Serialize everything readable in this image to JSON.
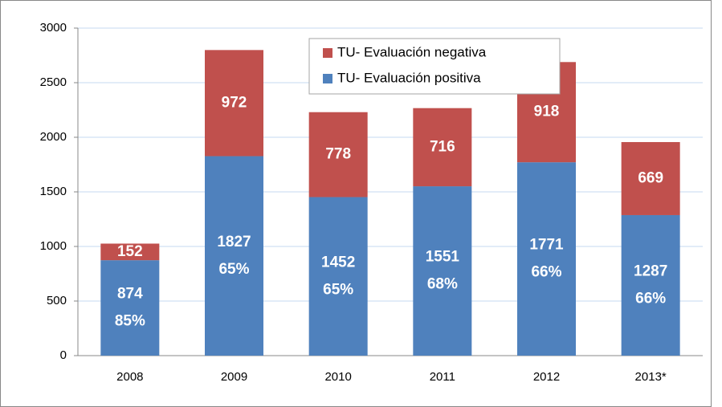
{
  "chart_data": {
    "type": "stacked_bar",
    "categories": [
      "2008",
      "2009",
      "2010",
      "2011",
      "2012",
      "2013*"
    ],
    "series": [
      {
        "name": "TU- Evaluación positiva",
        "color": "#4f81bd",
        "values": [
          874,
          1827,
          1452,
          1551,
          1771,
          1287
        ],
        "percent_labels": [
          "85%",
          "65%",
          "65%",
          "68%",
          "66%",
          "66%"
        ]
      },
      {
        "name": "TU- Evaluación negativa",
        "color": "#c0504d",
        "values": [
          152,
          972,
          778,
          716,
          918,
          669
        ]
      }
    ],
    "ylim": [
      0,
      3000
    ],
    "yticks": [
      0,
      500,
      1000,
      1500,
      2000,
      2500,
      3000
    ],
    "grid": true,
    "legend": "top"
  }
}
